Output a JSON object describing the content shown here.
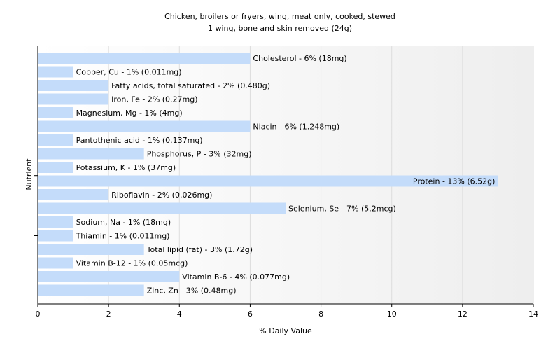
{
  "chart_data": {
    "type": "bar",
    "orientation": "horizontal",
    "title": "Chicken, broilers or fryers, wing, meat only, cooked, stewed",
    "subtitle": "1 wing, bone and skin removed (24g)",
    "xlabel": "% Daily Value",
    "ylabel": "Nutrient",
    "xlim": [
      0,
      14
    ],
    "xticks": [
      0,
      2,
      4,
      6,
      8,
      10,
      12,
      14
    ],
    "grid": true,
    "colors": {
      "bar": "#c4dcfa",
      "plot_background_start": "#ffffff",
      "plot_background_end": "#eeeeee",
      "grid": "#dddddd",
      "axis": "#000000"
    },
    "categories": [
      "Cholesterol",
      "Copper, Cu",
      "Fatty acids, total saturated",
      "Iron, Fe",
      "Magnesium, Mg",
      "Niacin",
      "Pantothenic acid",
      "Phosphorus, P",
      "Potassium, K",
      "Protein",
      "Riboflavin",
      "Selenium, Se",
      "Sodium, Na",
      "Thiamin",
      "Total lipid (fat)",
      "Vitamin B-12",
      "Vitamin B-6",
      "Zinc, Zn"
    ],
    "values": [
      6,
      1,
      2,
      2,
      1,
      6,
      1,
      3,
      1,
      13,
      2,
      7,
      1,
      1,
      3,
      1,
      4,
      3
    ],
    "labels": [
      "Cholesterol - 6% (18mg)",
      "Copper, Cu - 1% (0.011mg)",
      "Fatty acids, total saturated - 2% (0.480g)",
      "Iron, Fe - 2% (0.27mg)",
      "Magnesium, Mg - 1% (4mg)",
      "Niacin - 6% (1.248mg)",
      "Pantothenic acid - 1% (0.137mg)",
      "Phosphorus, P - 3% (32mg)",
      "Potassium, K - 1% (37mg)",
      "Protein - 13% (6.52g)",
      "Riboflavin - 2% (0.026mg)",
      "Selenium, Se - 7% (5.2mcg)",
      "Sodium, Na - 1% (18mg)",
      "Thiamin - 1% (0.011mg)",
      "Total lipid (fat) - 3% (1.72g)",
      "Vitamin B-12 - 1% (0.05mcg)",
      "Vitamin B-6 - 4% (0.077mg)",
      "Zinc, Zn - 3% (0.48mg)"
    ]
  }
}
